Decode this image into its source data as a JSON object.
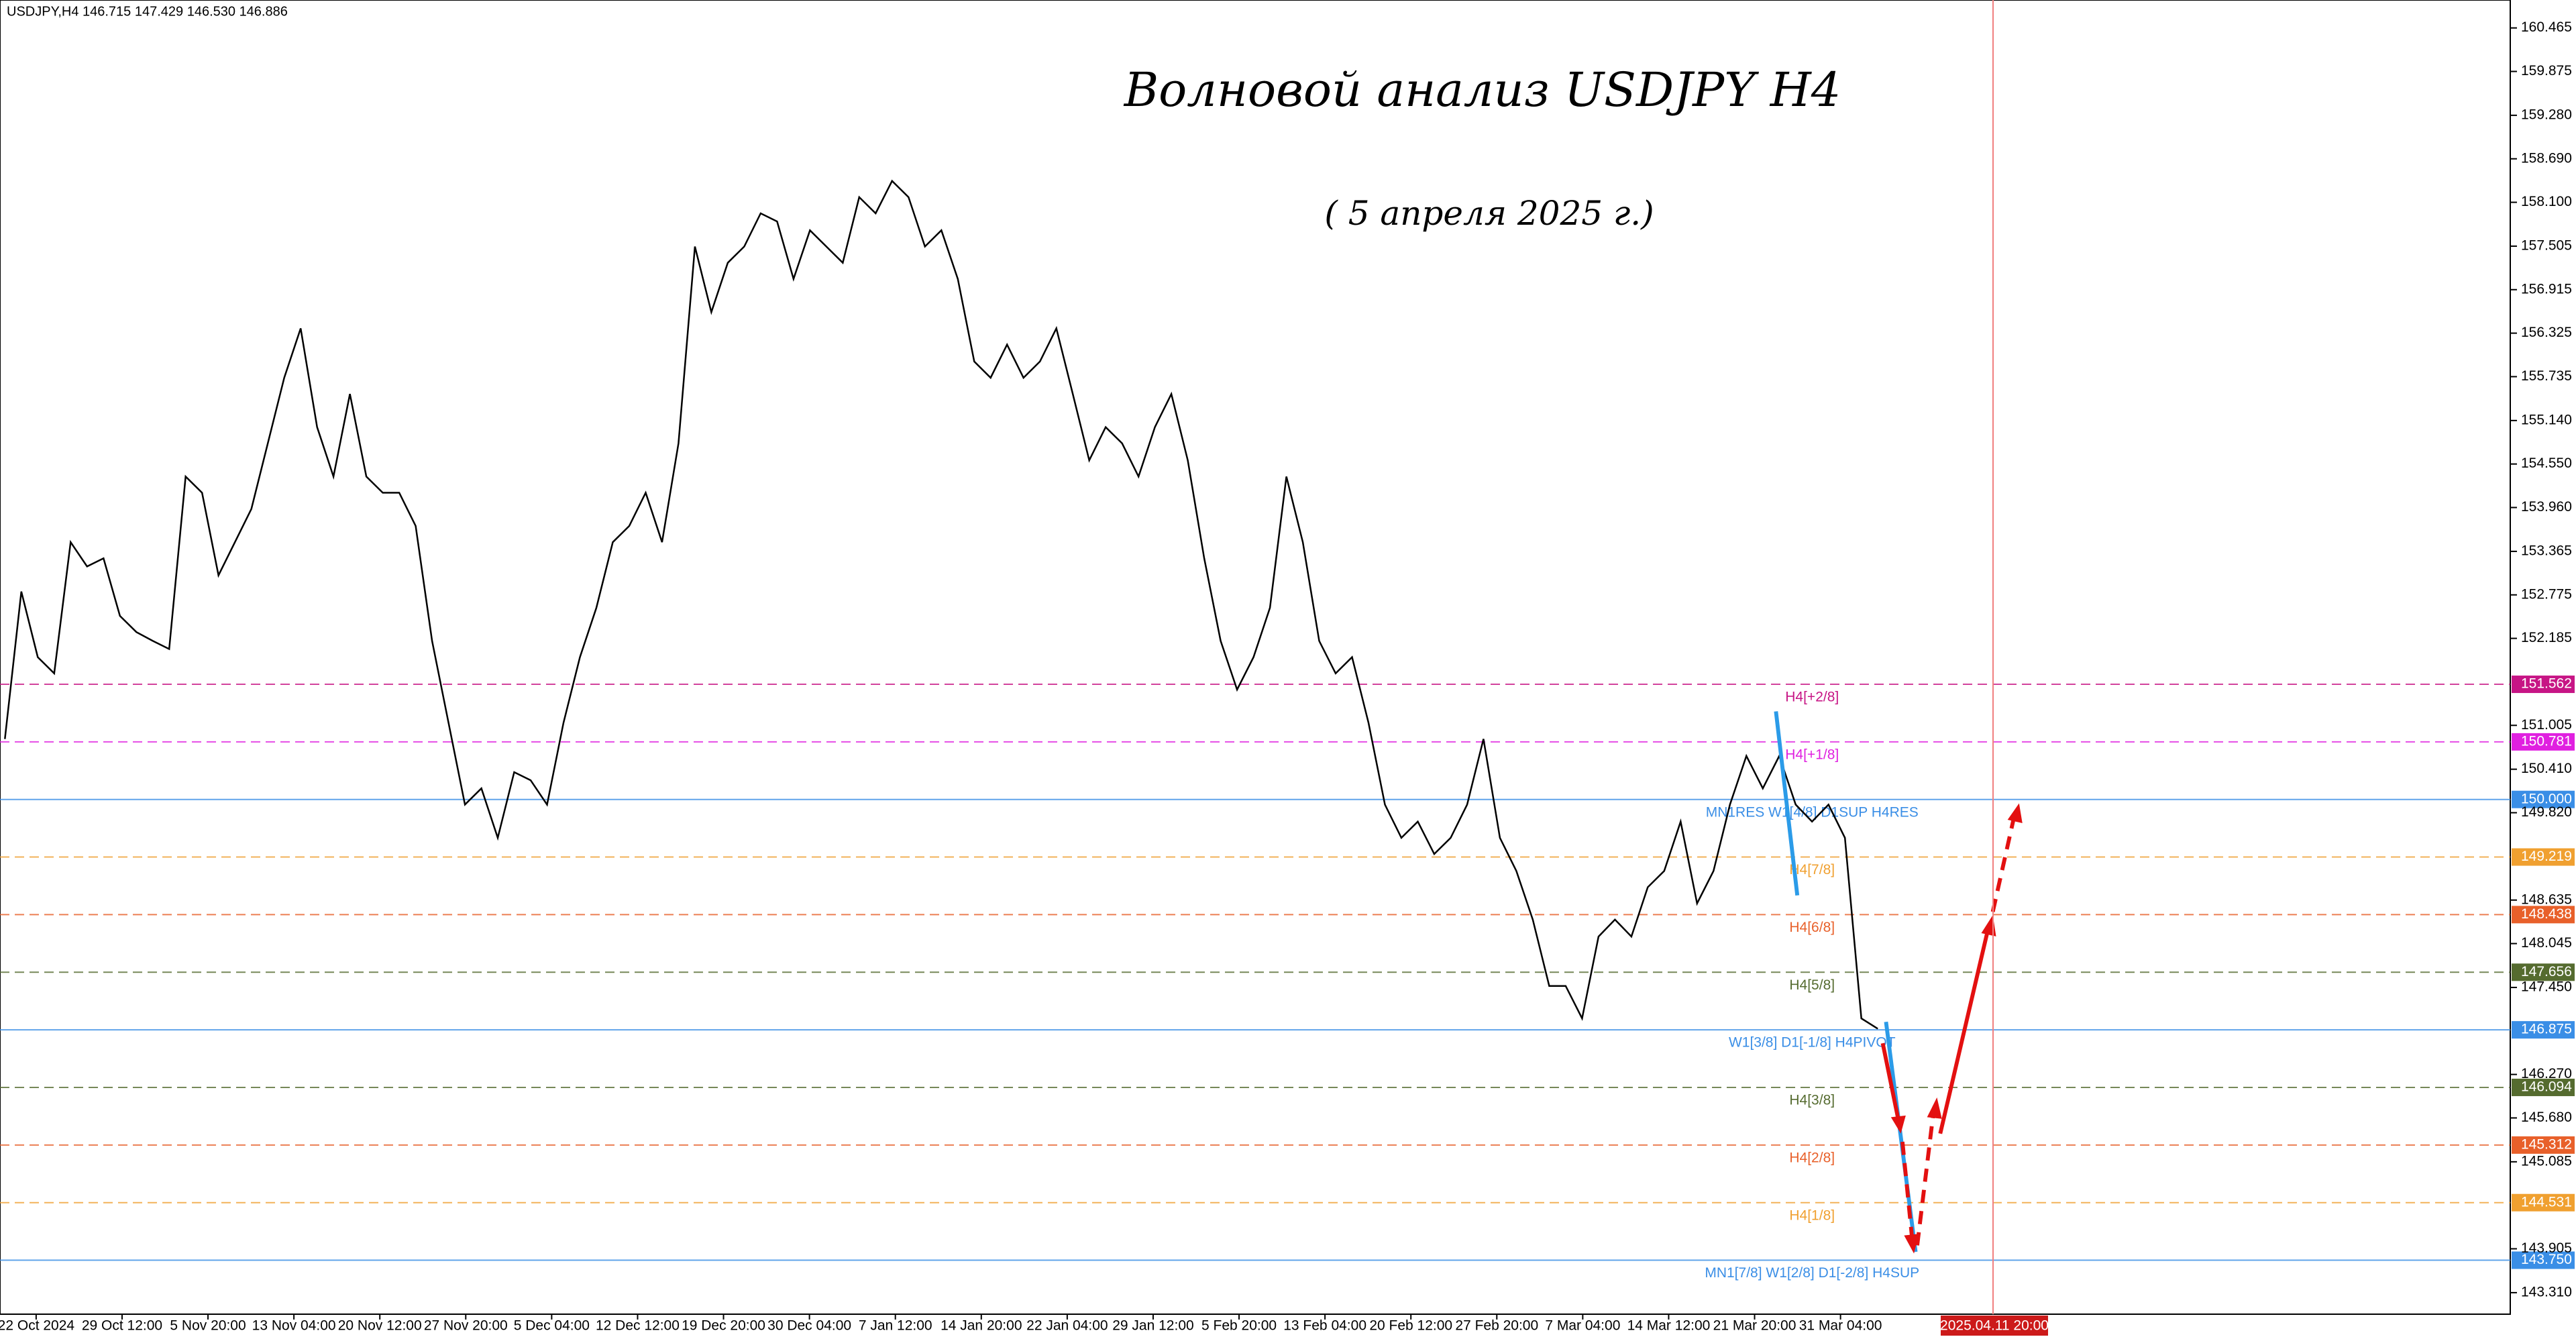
{
  "chart_data": {
    "type": "line",
    "header": "USDJPY,H4  146.715 147.429 146.530 146.886",
    "title": "Волновой анализ USDJPY H4",
    "subtitle": "( 5 апреля 2025 г.)",
    "series": [
      {
        "name": "USDJPY,H4",
        "color": "#000000",
        "values": [
          150.82,
          152.82,
          151.93,
          151.71,
          153.49,
          153.16,
          153.27,
          152.49,
          152.27,
          152.15,
          152.04,
          154.38,
          154.16,
          153.04,
          153.49,
          153.94,
          154.83,
          155.72,
          156.39,
          155.05,
          154.38,
          155.5,
          154.38,
          154.16,
          154.16,
          153.71,
          152.15,
          151.04,
          149.93,
          150.15,
          149.48,
          150.37,
          150.26,
          149.93,
          151.04,
          151.93,
          152.6,
          153.49,
          153.71,
          154.16,
          153.49,
          154.83,
          157.5,
          156.61,
          157.28,
          157.5,
          157.95,
          157.84,
          157.06,
          157.72,
          157.5,
          157.28,
          158.17,
          157.95,
          158.39,
          158.17,
          157.5,
          157.72,
          157.06,
          155.94,
          155.72,
          156.17,
          155.72,
          155.94,
          156.39,
          155.5,
          154.6,
          155.05,
          154.83,
          154.38,
          155.05,
          155.5,
          154.6,
          153.27,
          152.15,
          151.49,
          151.93,
          152.6,
          154.38,
          153.49,
          152.15,
          151.71,
          151.93,
          151.04,
          149.93,
          149.48,
          149.7,
          149.26,
          149.48,
          149.93,
          150.82,
          149.48,
          149.03,
          148.37,
          147.47,
          147.47,
          147.03,
          148.14,
          148.37,
          148.14,
          148.81,
          149.03,
          149.7,
          148.59,
          149.03,
          149.93,
          150.59,
          150.15,
          150.59,
          149.93,
          149.7,
          149.93,
          149.48,
          147.03,
          146.89
        ]
      }
    ],
    "time_labels": [
      "22 Oct 2024",
      "29 Oct 12:00",
      "5 Nov 20:00",
      "13 Nov 04:00",
      "20 Nov 12:00",
      "27 Nov 20:00",
      "5 Dec 04:00",
      "12 Dec 12:00",
      "19 Dec 20:00",
      "30 Dec 04:00",
      "7 Jan 12:00",
      "14 Jan 20:00",
      "22 Jan 04:00",
      "29 Jan 12:00",
      "5 Feb 20:00",
      "13 Feb 04:00",
      "20 Feb 12:00",
      "27 Feb 20:00",
      "7 Mar 04:00",
      "14 Mar 12:00",
      "21 Mar 20:00",
      "31 Mar 04:00"
    ],
    "marker_time": "2025.04.11 20:00",
    "ylim": [
      143.018,
      160.844
    ],
    "yticks": [
      {
        "value": 160.465,
        "label": "160.465"
      },
      {
        "value": 159.875,
        "label": "159.875"
      },
      {
        "value": 159.28,
        "label": "159.280"
      },
      {
        "value": 158.69,
        "label": "158.690"
      },
      {
        "value": 158.1,
        "label": "158.100"
      },
      {
        "value": 157.505,
        "label": "157.505"
      },
      {
        "value": 156.915,
        "label": "156.915"
      },
      {
        "value": 156.325,
        "label": "156.325"
      },
      {
        "value": 155.735,
        "label": "155.735"
      },
      {
        "value": 155.14,
        "label": "155.140"
      },
      {
        "value": 154.55,
        "label": "154.550"
      },
      {
        "value": 153.96,
        "label": "153.960"
      },
      {
        "value": 153.365,
        "label": "153.365"
      },
      {
        "value": 152.775,
        "label": "152.775"
      },
      {
        "value": 152.185,
        "label": "152.185"
      },
      {
        "value": 151.005,
        "label": "151.005"
      },
      {
        "value": 150.41,
        "label": "150.410"
      },
      {
        "value": 149.82,
        "label": "149.820"
      },
      {
        "value": 148.635,
        "label": "148.635"
      },
      {
        "value": 148.045,
        "label": "148.045"
      },
      {
        "value": 147.45,
        "label": "147.450"
      },
      {
        "value": 146.27,
        "label": "146.270"
      },
      {
        "value": 145.68,
        "label": "145.680"
      },
      {
        "value": 145.085,
        "label": "145.085"
      },
      {
        "value": 143.905,
        "label": "143.905"
      },
      {
        "value": 143.31,
        "label": "143.310"
      }
    ],
    "levels": [
      {
        "value": 151.562,
        "label": "151.562",
        "name": "H4[+2/8]",
        "color": "#c71585",
        "style": "dashed"
      },
      {
        "value": 150.781,
        "label": "150.781",
        "name": "H4[+1/8]",
        "color": "#e020e0",
        "style": "dashed"
      },
      {
        "value": 150.0,
        "label": "150.000",
        "name": "MN1RES W1[4/8] D1SUP H4RES",
        "color": "#3a8ee6",
        "style": "solid"
      },
      {
        "value": 149.219,
        "label": "149.219",
        "name": "H4[7/8]",
        "color": "#f0a030",
        "style": "dashed"
      },
      {
        "value": 148.438,
        "label": "148.438",
        "name": "H4[6/8]",
        "color": "#e8602a",
        "style": "dashed"
      },
      {
        "value": 147.656,
        "label": "147.656",
        "name": "H4[5/8]",
        "color": "#556b2f",
        "style": "dashed"
      },
      {
        "value": 146.875,
        "label": "146.875",
        "name": "W1[3/8] D1[-1/8] H4PIVOT",
        "color": "#3a8ee6",
        "style": "solid"
      },
      {
        "value": 146.094,
        "label": "146.094",
        "name": "H4[3/8]",
        "color": "#556b2f",
        "style": "dashed"
      },
      {
        "value": 145.312,
        "label": "145.312",
        "name": "H4[2/8]",
        "color": "#e8602a",
        "style": "dashed"
      },
      {
        "value": 144.531,
        "label": "144.531",
        "name": "H4[1/8]",
        "color": "#f0a030",
        "style": "dashed"
      },
      {
        "value": 143.75,
        "label": "143.750",
        "name": "MN1[7/8] W1[2/8] D1[-2/8] H4SUP",
        "color": "#3a8ee6",
        "style": "solid"
      }
    ]
  }
}
